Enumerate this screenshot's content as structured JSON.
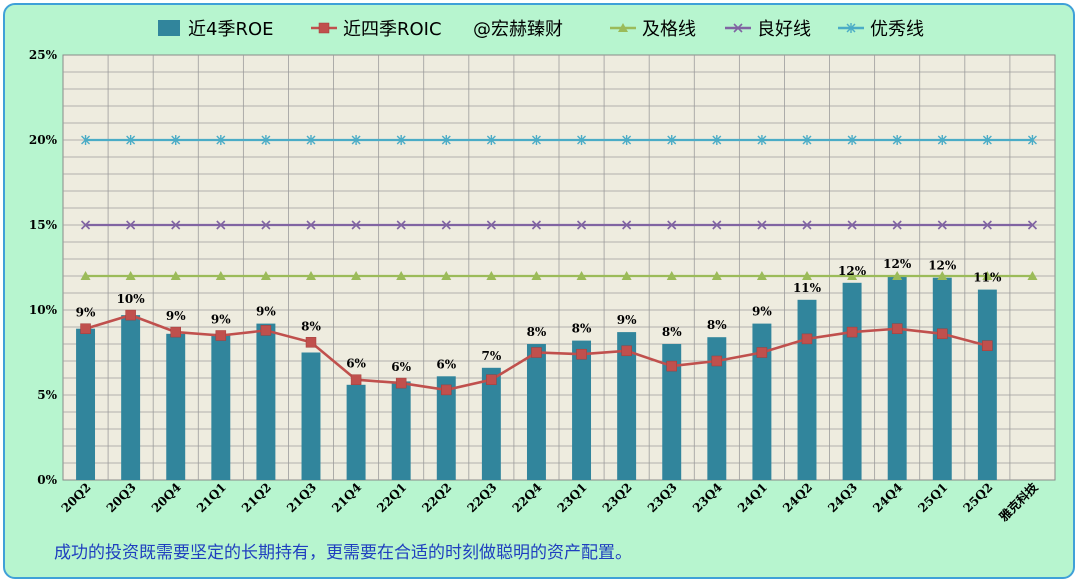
{
  "chart_data": {
    "type": "bar",
    "categories": [
      "20Q2",
      "20Q3",
      "20Q4",
      "21Q1",
      "21Q2",
      "21Q3",
      "21Q4",
      "22Q1",
      "22Q2",
      "22Q3",
      "22Q4",
      "23Q1",
      "23Q2",
      "23Q3",
      "23Q4",
      "24Q1",
      "24Q2",
      "24Q3",
      "24Q4",
      "25Q1",
      "25Q2",
      "雅克科技"
    ],
    "ylim": [
      0,
      25
    ],
    "yticks": [
      "0%",
      "5%",
      "10%",
      "15%",
      "20%",
      "25%"
    ],
    "grid": true,
    "legend_position": "top",
    "series": [
      {
        "name": "近4季ROE",
        "kind": "bar",
        "color": "#31859c",
        "values": [
          8.9,
          9.7,
          8.6,
          8.6,
          9.2,
          7.5,
          5.6,
          5.8,
          6.1,
          6.6,
          8.0,
          8.2,
          8.7,
          8.0,
          8.4,
          9.2,
          10.6,
          11.6,
          12.0,
          11.9,
          11.2,
          null
        ],
        "labels": [
          "9%",
          "10%",
          "9%",
          "9%",
          "9%",
          "8%",
          "6%",
          "6%",
          "6%",
          "7%",
          "8%",
          "8%",
          "9%",
          "8%",
          "8%",
          "9%",
          "11%",
          "12%",
          "12%",
          "12%",
          "11%",
          ""
        ]
      },
      {
        "name": "近四季ROIC",
        "kind": "line",
        "marker": "square",
        "color": "#c0504d",
        "values": [
          8.9,
          9.7,
          8.7,
          8.5,
          8.8,
          8.1,
          5.9,
          5.7,
          5.3,
          5.9,
          7.5,
          7.4,
          7.6,
          6.7,
          7.0,
          7.5,
          8.3,
          8.7,
          8.9,
          8.6,
          7.9,
          null
        ]
      },
      {
        "name": "及格线",
        "kind": "line",
        "marker": "triangle",
        "color": "#9bbb59",
        "values": [
          12,
          12,
          12,
          12,
          12,
          12,
          12,
          12,
          12,
          12,
          12,
          12,
          12,
          12,
          12,
          12,
          12,
          12,
          12,
          12,
          12,
          12
        ]
      },
      {
        "name": "良好线",
        "kind": "line",
        "marker": "x",
        "color": "#8064a2",
        "values": [
          15,
          15,
          15,
          15,
          15,
          15,
          15,
          15,
          15,
          15,
          15,
          15,
          15,
          15,
          15,
          15,
          15,
          15,
          15,
          15,
          15,
          15
        ]
      },
      {
        "name": "优秀线",
        "kind": "line",
        "marker": "star",
        "color": "#4bacc6",
        "values": [
          20,
          20,
          20,
          20,
          20,
          20,
          20,
          20,
          20,
          20,
          20,
          20,
          20,
          20,
          20,
          20,
          20,
          20,
          20,
          20,
          20,
          20
        ]
      }
    ],
    "legend_extra": "@宏赫臻财"
  },
  "footer": {
    "note": "成功的投资既需要坚定的长期持有，更需要在合适的时刻做聪明的资产配置。"
  }
}
